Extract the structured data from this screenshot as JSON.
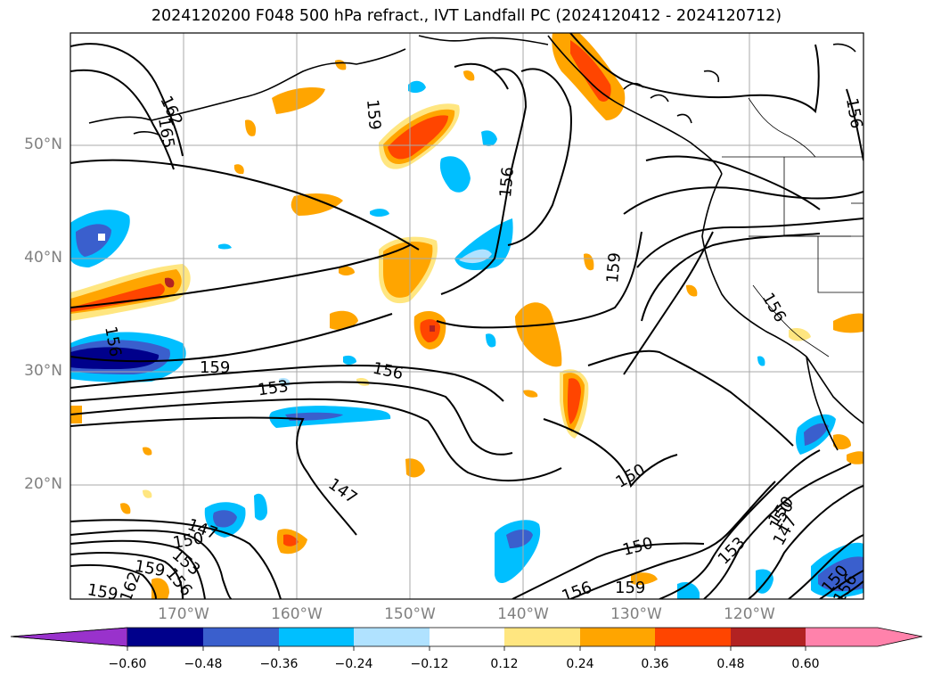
{
  "title": "2024120200 F048 500 hPa refract., IVT Landfall PC (2024120412 - 2024120712)",
  "map": {
    "lat_labels": [
      "50°N",
      "40°N",
      "30°N",
      "20°N"
    ],
    "lon_labels": [
      "170°W",
      "160°W",
      "150°W",
      "140°W",
      "130°W",
      "120°W"
    ],
    "contour_labels": [
      "162",
      "165",
      "159",
      "156",
      "156",
      "159",
      "156",
      "156",
      "159",
      "153",
      "156",
      "147",
      "150",
      "147",
      "150",
      "153",
      "162",
      "159",
      "156",
      "159",
      "150",
      "150",
      "153",
      "150",
      "147",
      "156",
      "159",
      "150",
      "156"
    ]
  },
  "colorbar": {
    "ticks": [
      "−0.60",
      "−0.48",
      "−0.36",
      "−0.24",
      "−0.12",
      "0.12",
      "0.24",
      "0.36",
      "0.48",
      "0.60"
    ],
    "colors": [
      "#9932cc",
      "#00008b",
      "#3a5fcd",
      "#00bfff",
      "#b0e2ff",
      "#ffffff",
      "#ffe680",
      "#ffa500",
      "#ff4500",
      "#b22222",
      "#ff82ab"
    ]
  },
  "colors": {
    "contour": "#000000",
    "grid": "#aaaaaa",
    "axis_label": "#808080"
  }
}
